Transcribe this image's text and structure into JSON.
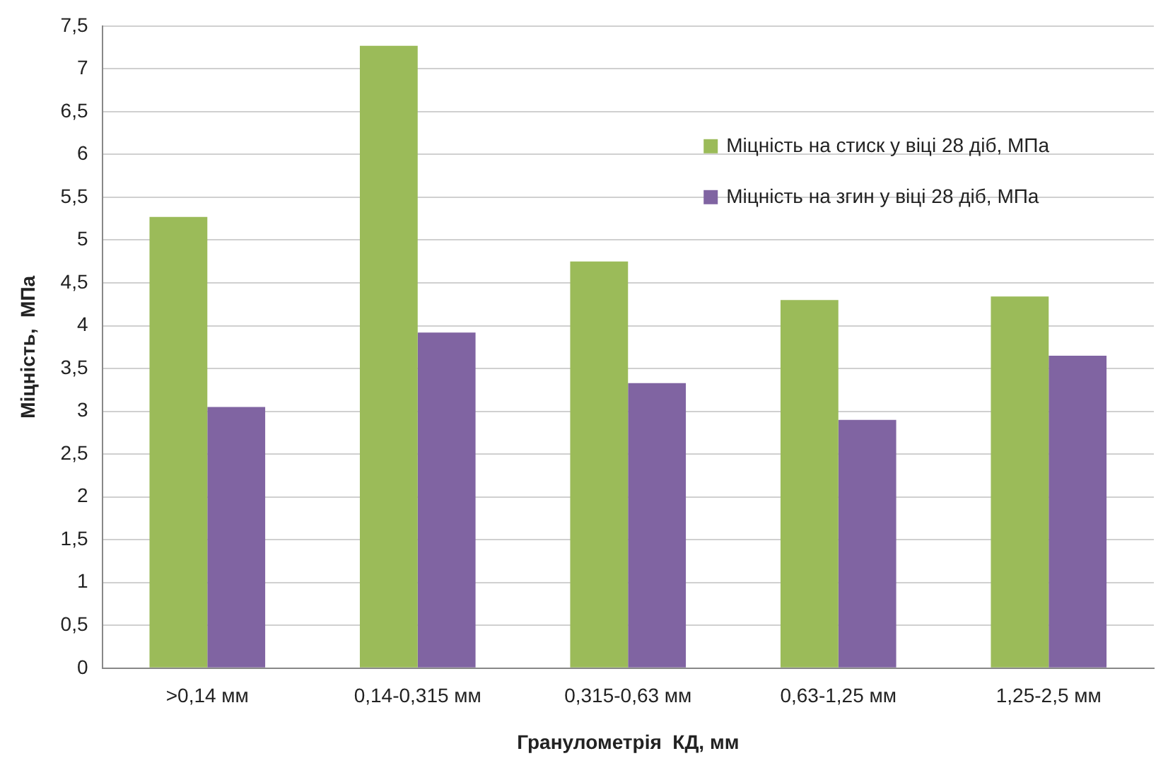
{
  "chart_data": {
    "type": "bar",
    "xlabel": "Гранулометрія  КД, мм",
    "ylabel": "Міцність,  МПа",
    "categories": [
      ">0,14 мм",
      "0,14-0,315 мм",
      "0,315-0,63 мм",
      "0,63-1,25 мм",
      "1,25-2,5 мм"
    ],
    "series": [
      {
        "name": "Міцність на стиск у віці 28 діб, МПа",
        "color": "#9bbb59",
        "values": [
          5.27,
          7.27,
          4.75,
          4.3,
          4.34
        ]
      },
      {
        "name": "Міцність на згин у віці 28 діб, МПа",
        "color": "#8064a2",
        "values": [
          3.05,
          3.92,
          3.33,
          2.9,
          3.65
        ]
      }
    ],
    "ylim": [
      0,
      7.5
    ],
    "yticks": [
      0,
      {
        "value": 0.5,
        "label": "0,5"
      },
      1,
      {
        "value": 1.5,
        "label": "1,5"
      },
      2,
      {
        "value": 2.5,
        "label": "2,5"
      },
      3,
      {
        "value": 3.5,
        "label": "3,5"
      },
      4,
      {
        "value": 4.5,
        "label": "4,5"
      },
      5,
      {
        "value": 5.5,
        "label": "5,5"
      },
      6,
      {
        "value": 6.5,
        "label": "6,5"
      },
      7,
      {
        "value": 7.5,
        "label": "7,5"
      }
    ],
    "grid": "y",
    "legend": "top right"
  }
}
